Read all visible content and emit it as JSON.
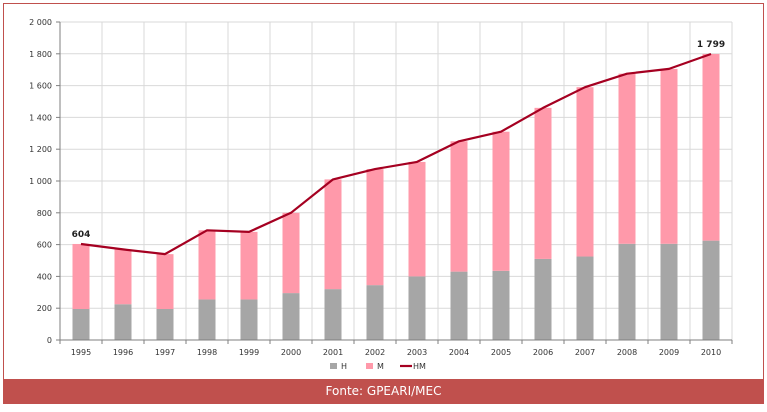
{
  "chart_data": {
    "type": "bar",
    "stacked": true,
    "categories": [
      "1995",
      "1996",
      "1997",
      "1998",
      "1999",
      "2000",
      "2001",
      "2002",
      "2003",
      "2004",
      "2005",
      "2006",
      "2007",
      "2008",
      "2009",
      "2010"
    ],
    "series": [
      {
        "name": "H",
        "type": "bar",
        "color": "#a6a6a6",
        "values": [
          195,
          225,
          195,
          255,
          255,
          295,
          320,
          345,
          400,
          430,
          435,
          510,
          525,
          605,
          605,
          625
        ]
      },
      {
        "name": "M",
        "type": "bar",
        "color": "#ff99aa",
        "values": [
          409,
          345,
          345,
          435,
          425,
          505,
          690,
          730,
          720,
          820,
          875,
          950,
          1065,
          1070,
          1100,
          1174
        ]
      },
      {
        "name": "HM",
        "type": "line",
        "color": "#a50021",
        "values": [
          604,
          570,
          540,
          690,
          680,
          800,
          1010,
          1075,
          1120,
          1250,
          1310,
          1460,
          1590,
          1675,
          1705,
          1799
        ]
      }
    ],
    "annotations": [
      {
        "category": "1995",
        "value": 604,
        "text": "604"
      },
      {
        "category": "2010",
        "value": 1799,
        "text": "1 799"
      }
    ],
    "yticks": [
      0,
      200,
      400,
      600,
      800,
      1000,
      1200,
      1400,
      1600,
      1800,
      2000
    ],
    "ytick_labels": [
      "0",
      "200",
      "400",
      "600",
      "800",
      "1 000",
      "1 200",
      "1 400",
      "1 600",
      "1 800",
      "2 000"
    ],
    "ylim": [
      0,
      2000
    ],
    "grid": true,
    "legend_position": "bottom-center",
    "title": "",
    "xlabel": "",
    "ylabel": ""
  },
  "footer": {
    "source_label": "Fonte: GPEARI/MEC"
  }
}
